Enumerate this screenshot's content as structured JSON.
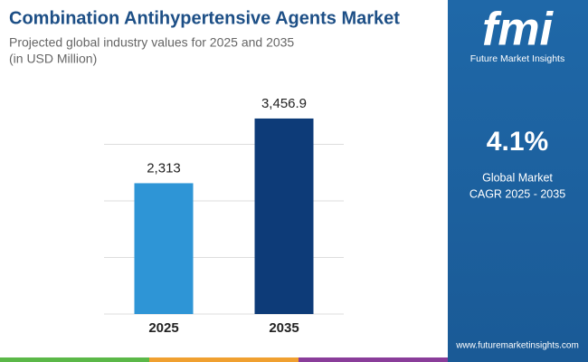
{
  "chart_data": {
    "type": "bar",
    "title": "Combination Antihypertensive Agents Market",
    "subtitle": [
      "Projected global industry values for 2025 and 2035",
      "(in USD Million)"
    ],
    "categories": [
      "2025",
      "2035"
    ],
    "values": [
      2313,
      3456.9
    ],
    "value_labels": [
      "2,313",
      "3,456.9"
    ],
    "colors": [
      "#2e95d6",
      "#0d3b78"
    ],
    "ylim": [
      0,
      4000
    ],
    "yticks": [
      0,
      1000,
      2000,
      3000
    ],
    "grid": true
  },
  "panel": {
    "logo": "fmi",
    "brand": "Future Market Insights",
    "cagr": "4.1%",
    "cagr_label": [
      "Global Market",
      "CAGR 2025 - 2035"
    ],
    "url": "www.futuremarketinsights.com"
  }
}
